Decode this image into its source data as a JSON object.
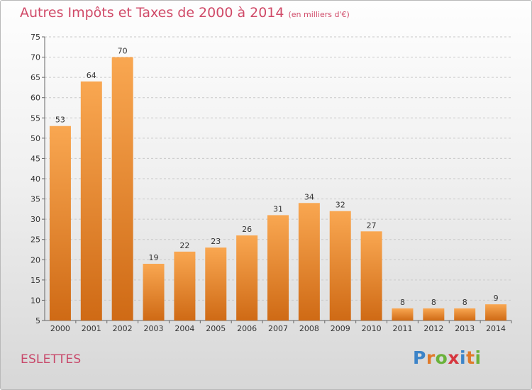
{
  "header": {
    "title": "Autres Impôts et Taxes de 2000 à 2014",
    "unit": "(en milliers d'€)"
  },
  "footer": {
    "commune": "ESLETTES",
    "logo": "Proxiti"
  },
  "colors": {
    "bar_light": "#f9a751",
    "bar_dark": "#cf6a15",
    "title": "#d04a68"
  },
  "chart_data": {
    "type": "bar",
    "title": "Autres Impôts et Taxes de 2000 à 2014",
    "subtitle": "(en milliers d'€)",
    "xlabel": "",
    "ylabel": "",
    "categories": [
      "2000",
      "2001",
      "2002",
      "2003",
      "2004",
      "2005",
      "2006",
      "2007",
      "2008",
      "2009",
      "2010",
      "2011",
      "2012",
      "2013",
      "2014"
    ],
    "values": [
      53,
      64,
      70,
      19,
      22,
      23,
      26,
      31,
      34,
      32,
      27,
      8,
      8,
      8,
      9
    ],
    "ylim": [
      5,
      75
    ],
    "yticks": [
      5,
      10,
      15,
      20,
      25,
      30,
      35,
      40,
      45,
      50,
      55,
      60,
      65,
      70,
      75
    ],
    "grid": true
  }
}
